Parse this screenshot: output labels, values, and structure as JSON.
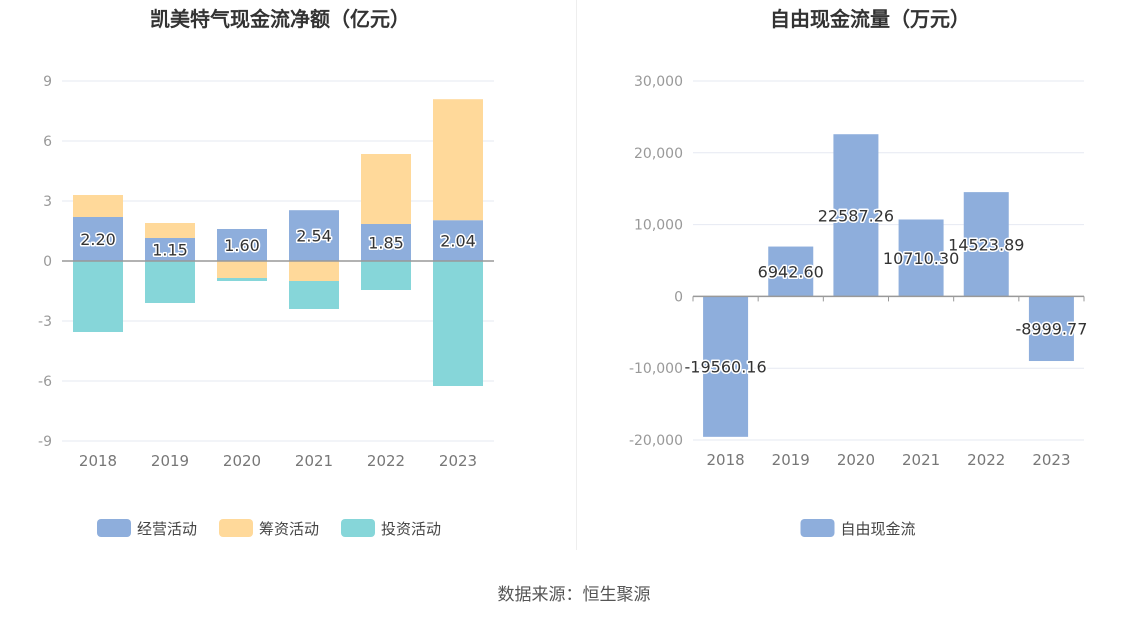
{
  "chart_data": [
    {
      "type": "bar",
      "stacked": true,
      "title": "凯美特气现金流净额（亿元）",
      "categories": [
        "2018",
        "2019",
        "2020",
        "2021",
        "2022",
        "2023"
      ],
      "series": [
        {
          "name": "经营活动",
          "color": "#8eaedc",
          "values": [
            2.2,
            1.15,
            1.6,
            2.54,
            1.85,
            2.04
          ],
          "show_labels": true
        },
        {
          "name": "筹资活动",
          "color": "#ffd99a",
          "values": [
            1.1,
            0.75,
            -0.85,
            -1.0,
            3.5,
            6.05
          ],
          "show_labels": false
        },
        {
          "name": "投资活动",
          "color": "#86d6d9",
          "values": [
            -3.55,
            -2.1,
            -0.15,
            -1.4,
            -1.45,
            -6.25
          ],
          "show_labels": false
        }
      ],
      "ylim": [
        -9,
        9
      ],
      "yticks": [
        9,
        6,
        3,
        0,
        -3,
        -6,
        -9
      ],
      "grid": true,
      "legend": "bottom"
    },
    {
      "type": "bar",
      "title": "自由现金流量（万元）",
      "categories": [
        "2018",
        "2019",
        "2020",
        "2021",
        "2022",
        "2023"
      ],
      "series": [
        {
          "name": "自由现金流",
          "color": "#8eaedc",
          "values": [
            -19560.16,
            6942.6,
            22587.26,
            10710.3,
            14523.89,
            -8999.77
          ],
          "show_labels": true
        }
      ],
      "ylim": [
        -20000,
        30000
      ],
      "yticks": [
        30000,
        20000,
        10000,
        0,
        -10000,
        -20000
      ],
      "ytick_labels": [
        "30,000",
        "20,000",
        "10,000",
        "0",
        "-10,000",
        "-20,000"
      ],
      "grid": true,
      "legend": "bottom"
    }
  ],
  "source": "数据来源：恒生聚源"
}
